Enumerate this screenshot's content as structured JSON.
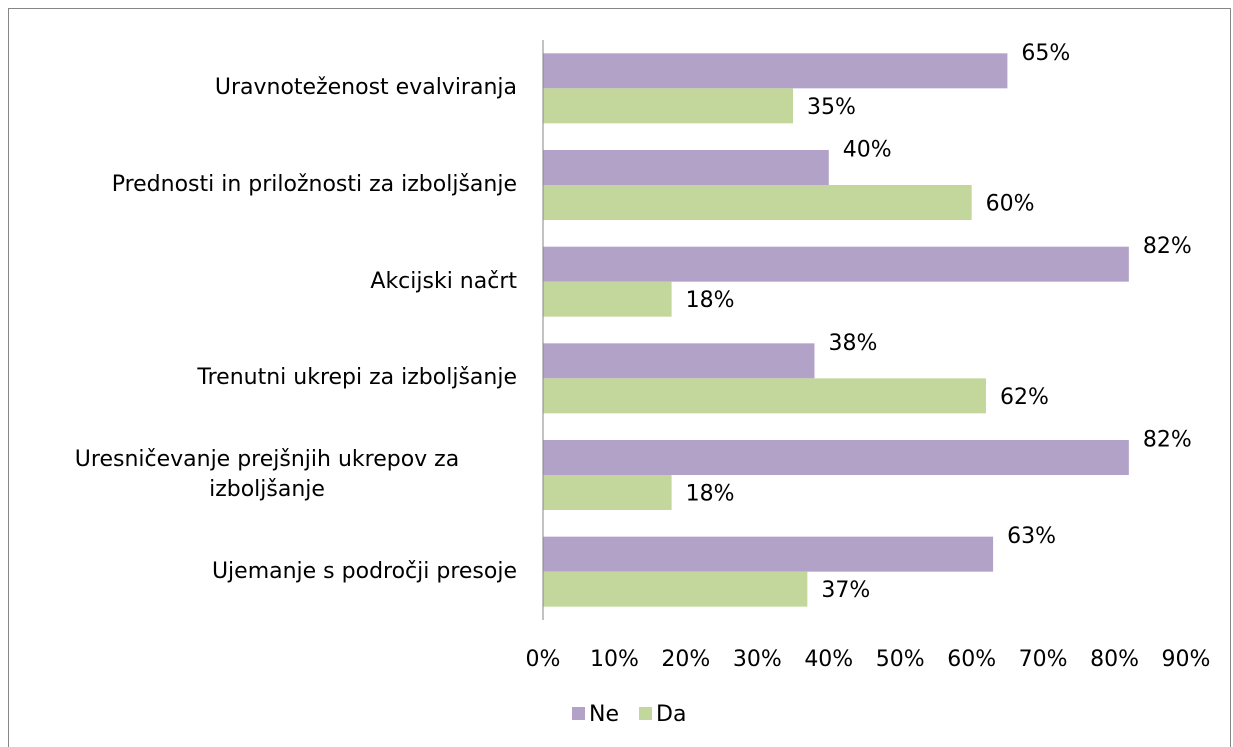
{
  "chart_data": {
    "type": "hbar",
    "categories": [
      "Uravnoteženost evalviranja",
      "Prednosti in priložnosti za izboljšanje",
      "Akcijski načrt",
      "Trenutni ukrepi za izboljšanje",
      "Uresničevanje prejšnjih ukrepov za izboljšanje",
      "Ujemanje s področji presoje"
    ],
    "series": [
      {
        "name": "Ne",
        "color": "#b2a2c7",
        "values": [
          65,
          40,
          82,
          38,
          82,
          63
        ],
        "value_labels": [
          "65%",
          "40%",
          "82%",
          "38%",
          "82%",
          "63%"
        ]
      },
      {
        "name": "Da",
        "color": "#c3d69b",
        "values": [
          35,
          60,
          18,
          62,
          18,
          37
        ],
        "value_labels": [
          "35%",
          "60%",
          "18%",
          "62%",
          "18%",
          "37%"
        ]
      }
    ],
    "xlim": [
      0,
      90
    ],
    "xticks": [
      {
        "value": 0,
        "label": "0%"
      },
      {
        "value": 10,
        "label": "10%"
      },
      {
        "value": 20,
        "label": "20%"
      },
      {
        "value": 30,
        "label": "30%"
      },
      {
        "value": 40,
        "label": "40%"
      },
      {
        "value": 50,
        "label": "50%"
      },
      {
        "value": 60,
        "label": "60%"
      },
      {
        "value": 70,
        "label": "70%"
      },
      {
        "value": 80,
        "label": "80%"
      },
      {
        "value": 90,
        "label": "90%"
      }
    ],
    "legend": "bottom"
  }
}
